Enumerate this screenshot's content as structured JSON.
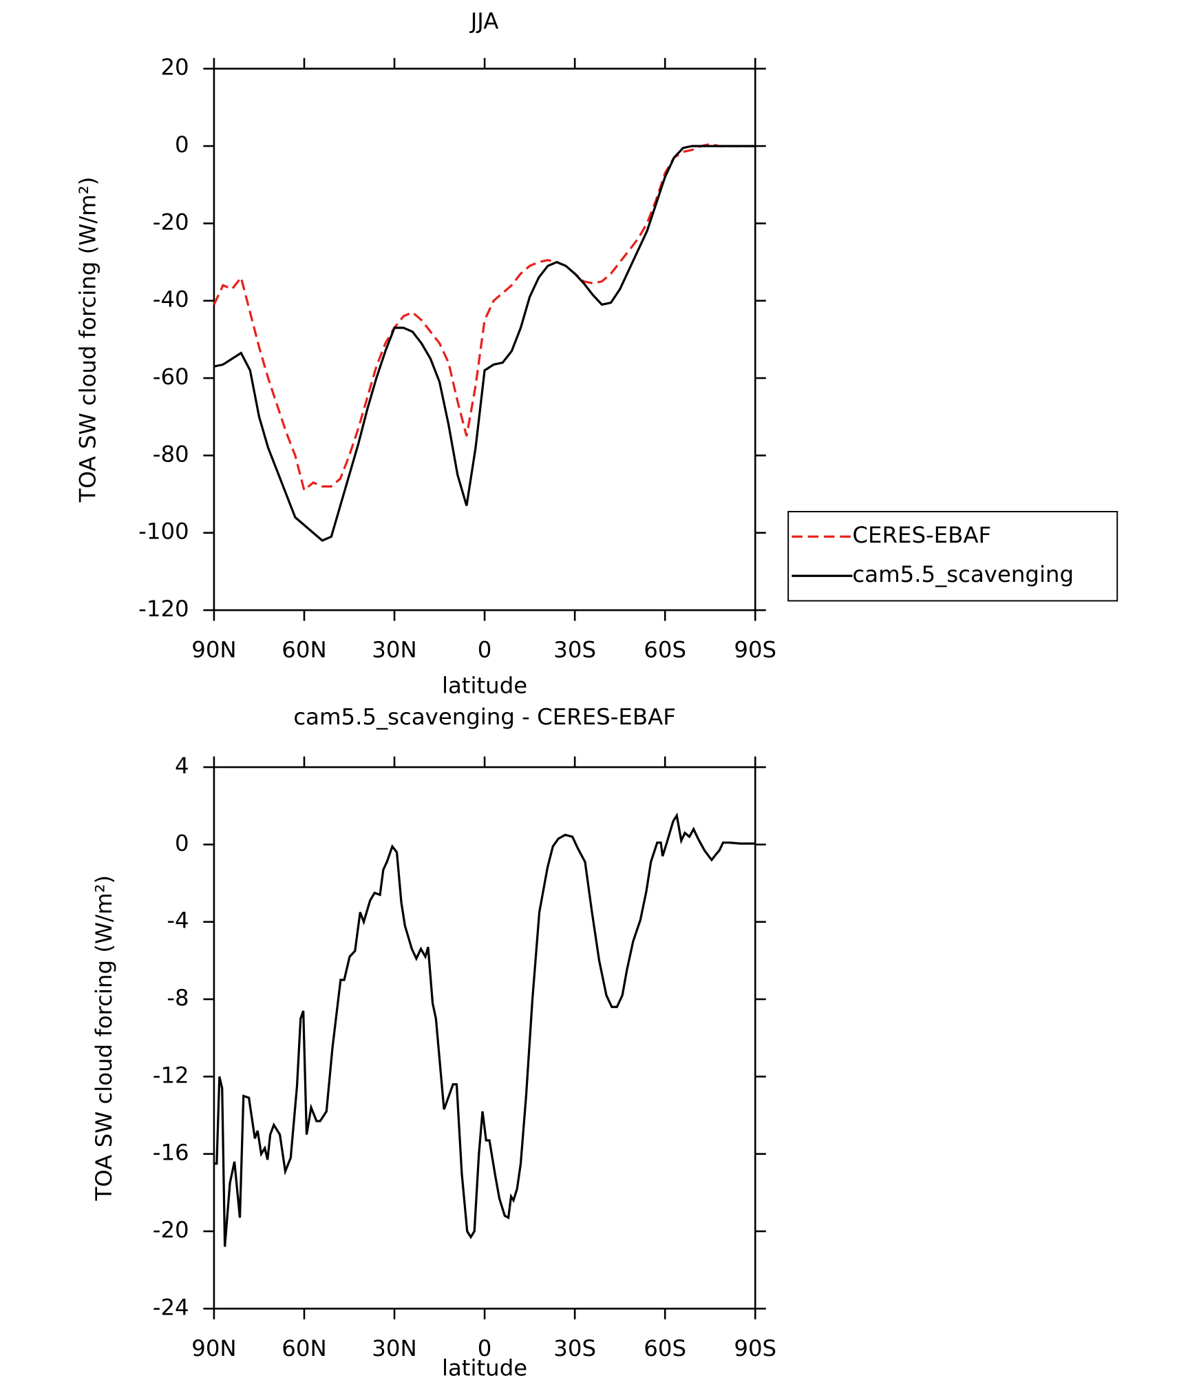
{
  "chart_data": [
    {
      "type": "line",
      "title": "JJA",
      "xlabel": "latitude",
      "ylabel": "TOA SW cloud forcing (W/m²)",
      "x": [
        90,
        87,
        84,
        81,
        78,
        75,
        72,
        69,
        66,
        63,
        60,
        57,
        54,
        51,
        48,
        45,
        42,
        39,
        36,
        33,
        30,
        27,
        24,
        21,
        18,
        15,
        12,
        9,
        6,
        3,
        0,
        -3,
        -6,
        -9,
        -12,
        -15,
        -18,
        -21,
        -24,
        -27,
        -30,
        -33,
        -36,
        -39,
        -42,
        -45,
        -48,
        -51,
        -54,
        -57,
        -60,
        -63,
        -66,
        -69,
        -72,
        -75,
        -78,
        -81,
        -84,
        -87,
        -90
      ],
      "series": [
        {
          "name": "CERES-EBAF",
          "color": "#e8201c",
          "dash": "dashed",
          "values": [
            -41,
            -36,
            -37,
            -34,
            -43,
            -52,
            -60,
            -67,
            -74,
            -80,
            -89,
            -87,
            -88,
            -88,
            -86,
            -80,
            -73,
            -65,
            -57,
            -51,
            -47,
            -44,
            -43,
            -45,
            -48,
            -51,
            -56,
            -66,
            -75,
            -62,
            -45,
            -40,
            -38,
            -36,
            -33,
            -31,
            -30,
            -29.5,
            -30,
            -31,
            -33,
            -35,
            -35.5,
            -35,
            -33,
            -30,
            -27,
            -24,
            -20,
            -14,
            -7,
            -3,
            -1.5,
            -1,
            0,
            0.5,
            0,
            0,
            0,
            0,
            0
          ]
        },
        {
          "name": "cam5.5_scavenging",
          "color": "#000000",
          "dash": "solid",
          "values": [
            -57,
            -56.5,
            -55,
            -53.5,
            -58,
            -70,
            -78,
            -84,
            -90,
            -96,
            -98,
            -100,
            -102,
            -101,
            -93,
            -85,
            -77,
            -68,
            -60,
            -53,
            -47,
            -47,
            -48,
            -51,
            -55,
            -61,
            -72,
            -85,
            -93,
            -78,
            -58,
            -56.5,
            -56,
            -53,
            -47,
            -39,
            -34,
            -31,
            -30,
            -31,
            -33,
            -35.5,
            -38.5,
            -41,
            -40.5,
            -37,
            -32,
            -27,
            -22,
            -15,
            -8,
            -3,
            -0.5,
            0,
            0,
            0,
            0,
            0,
            0,
            0,
            0
          ]
        }
      ],
      "xlim": [
        90,
        -90
      ],
      "xticks": [
        {
          "value": 90,
          "label": "90N"
        },
        {
          "value": 60,
          "label": "60N"
        },
        {
          "value": 30,
          "label": "30N"
        },
        0,
        {
          "value": -30,
          "label": "30S"
        },
        {
          "value": -60,
          "label": "60S"
        },
        {
          "value": -90,
          "label": "90S"
        }
      ],
      "ylim": [
        -120,
        20
      ],
      "yticks": [
        20,
        0,
        -20,
        -40,
        -60,
        -80,
        -100,
        -120
      ],
      "legend": "right"
    },
    {
      "type": "line",
      "title": "cam5.5_scavenging - CERES-EBAF",
      "xlabel": "latitude",
      "ylabel": "TOA SW cloud forcing (W/m²)",
      "x": [
        90,
        89.1,
        88.2,
        87.3,
        86.4,
        84.7,
        83.2,
        81.4,
        80.2,
        78.4,
        76.4,
        75.5,
        74.3,
        73.1,
        72.2,
        71.3,
        70.1,
        68.1,
        66.3,
        64.5,
        62.4,
        61.2,
        60.3,
        59.2,
        57.7,
        55.9,
        54.7,
        52.6,
        50.6,
        47.9,
        46.7,
        44.9,
        43.1,
        41.4,
        40.2,
        38.1,
        36.6,
        34.8,
        33.7,
        32.5,
        30.7,
        29.2,
        27.7,
        26.5,
        24.2,
        22.7,
        21.2,
        19.7,
        18.8,
        17.3,
        16.2,
        13.5,
        10.5,
        9.3,
        7.6,
        5.8,
        4.6,
        3.4,
        1.9,
        0.7,
        -0.5,
        -1.6,
        -3.4,
        -4.9,
        -6.7,
        -7.9,
        -8.8,
        -9.6,
        -10.8,
        -12,
        -13.8,
        -15.9,
        -18.2,
        -20.9,
        -22.7,
        -24.5,
        -26.8,
        -29.2,
        -31,
        -33.4,
        -35.7,
        -38.1,
        -40.5,
        -42.3,
        -44,
        -45.8,
        -47.3,
        -49.4,
        -51.8,
        -53.8,
        -55.3,
        -57.4,
        -58.6,
        -59.2,
        -60.6,
        -62.7,
        -63.9,
        -65.4,
        -66.6,
        -68.1,
        -69.5,
        -71,
        -73.1,
        -75.5,
        -77,
        -78.1,
        -79.3,
        -81.4,
        -85,
        -90
      ],
      "series": [
        {
          "color": "#000000",
          "dash": "solid",
          "values": [
            -16.5,
            -16.5,
            -12,
            -12.6,
            -20.8,
            -17.5,
            -16.4,
            -19.3,
            -13,
            -13.1,
            -15.2,
            -14.8,
            -16,
            -15.7,
            -16.3,
            -15,
            -14.5,
            -15,
            -16.9,
            -16.2,
            -12.5,
            -9,
            -8.6,
            -15,
            -13.6,
            -14.3,
            -14.3,
            -13.8,
            -10.5,
            -7,
            -7,
            -5.8,
            -5.5,
            -3.5,
            -4,
            -2.9,
            -2.5,
            -2.6,
            -1.3,
            -0.9,
            -0.1,
            -0.4,
            -3,
            -4.2,
            -5.4,
            -5.9,
            -5.4,
            -5.8,
            -5.3,
            -8.2,
            -9,
            -13.7,
            -12.4,
            -12.4,
            -17,
            -20,
            -20.3,
            -20,
            -16,
            -13.8,
            -15.3,
            -15.3,
            -17,
            -18.3,
            -19.2,
            -19.3,
            -18.2,
            -18.4,
            -17.8,
            -16.5,
            -13,
            -8,
            -3.5,
            -1.2,
            -0.1,
            0.3,
            0.5,
            0.4,
            -0.2,
            -0.9,
            -3.5,
            -6,
            -7.8,
            -8.4,
            -8.4,
            -7.8,
            -6.5,
            -5,
            -3.9,
            -2.4,
            -0.9,
            0.1,
            0.1,
            -0.6,
            0.1,
            1.2,
            1.5,
            0.2,
            0.6,
            0.4,
            0.8,
            0.3,
            -0.3,
            -0.8,
            -0.5,
            -0.3,
            0.1,
            0.1,
            0.05,
            0.05
          ]
        }
      ],
      "xlim": [
        90,
        -90
      ],
      "xticks": [
        {
          "value": 90,
          "label": "90N"
        },
        {
          "value": 60,
          "label": "60N"
        },
        {
          "value": 30,
          "label": "30N"
        },
        0,
        {
          "value": -30,
          "label": "30S"
        },
        {
          "value": -60,
          "label": "60S"
        },
        {
          "value": -90,
          "label": "90S"
        }
      ],
      "ylim": [
        -24,
        4
      ],
      "yticks": [
        4,
        0,
        -4,
        -8,
        -12,
        -16,
        -20,
        -24
      ]
    }
  ]
}
